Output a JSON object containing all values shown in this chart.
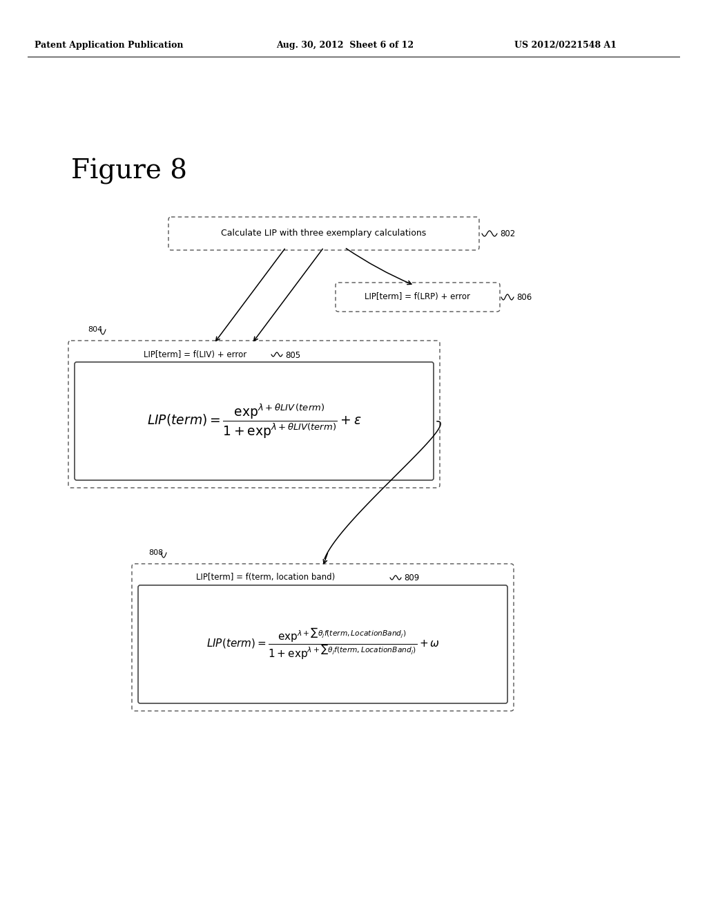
{
  "background_color": "#ffffff",
  "header_left": "Patent Application Publication",
  "header_mid": "Aug. 30, 2012  Sheet 6 of 12",
  "header_right": "US 2012/0221548 A1",
  "figure_label": "Figure 8",
  "box802_text": "Calculate LIP with three exemplary calculations",
  "box802_label": "802",
  "box806_text": "LIP[term] = f(LRP) + error",
  "box806_label": "806",
  "box804_label": "804",
  "box805_label": "805",
  "box805_title": "LIP[term] = f(LIV) + error",
  "box808_label": "808",
  "box809_label": "809",
  "box809_title": "LIP[term] = f(term, location band)"
}
